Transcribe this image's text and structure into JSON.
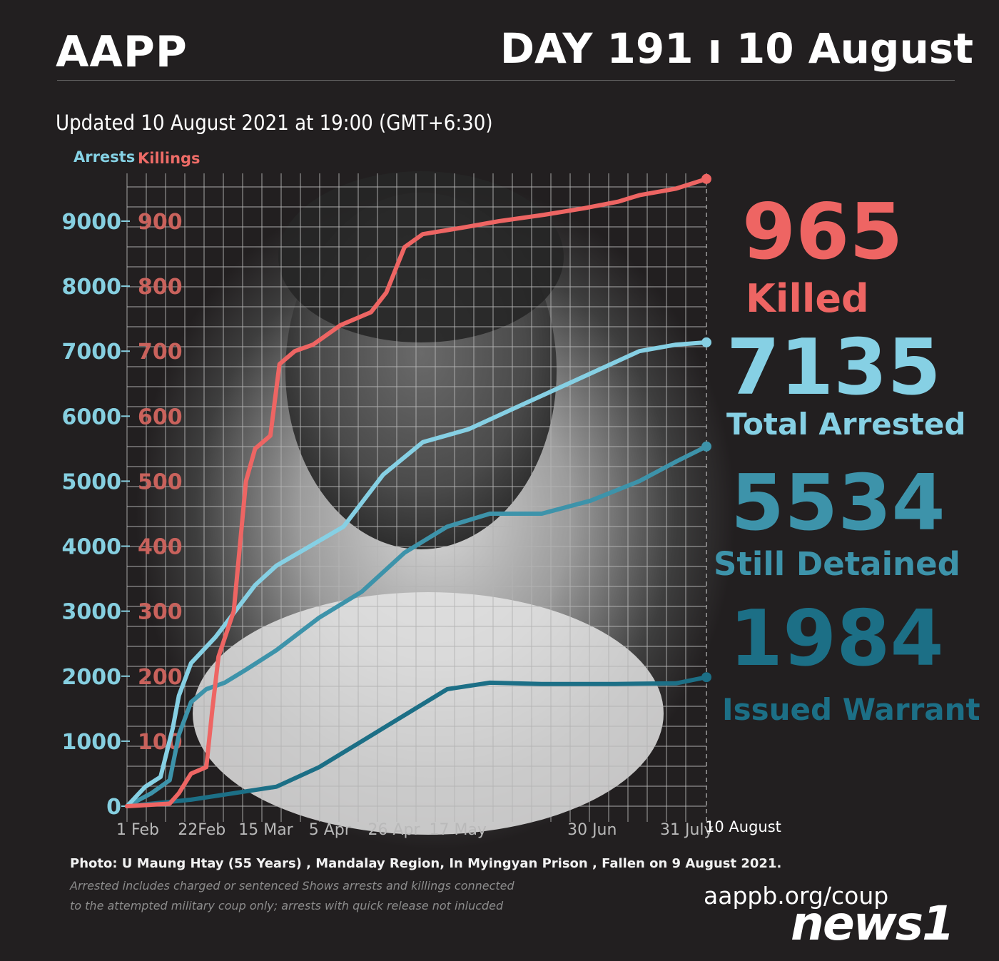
{
  "header": {
    "brand": "AAPP",
    "day": "DAY 191 ı 10 August",
    "updated": "Updated 10 August 2021 at 19:00 (GMT+6:30)"
  },
  "axes": {
    "left_label": "Arrests",
    "right_label": "Killings"
  },
  "colors": {
    "killings": "#ee6563",
    "arrested": "#86d0e4",
    "detained": "#3d93aa",
    "warrant": "#1c6f86",
    "background": "#221f20",
    "grid": "#b4b4b4"
  },
  "stats": {
    "killed_value": "965",
    "killed_label": "Killed",
    "arrested_value": "7135",
    "arrested_label": "Total Arrested",
    "detained_value": "5534",
    "detained_label": "Still Detained",
    "warrant_value": "1984",
    "warrant_label": "Issued Warrant"
  },
  "footer": {
    "photo_note": "Photo:  U Maung Htay (55 Years) , Mandalay Region, In Myingyan Prison , Fallen on 9 August 2021.",
    "note_line1": "Arrested includes charged or sentenced Shows arrests and killings connected",
    "note_line2": "to the attempted military coup only; arrests with quick release not inlucded",
    "site": "aappb.org/coup",
    "watermark": "news1"
  },
  "chart_data": {
    "type": "line",
    "x_tick_labels": [
      "1 Feb",
      "22Feb",
      "15 Mar",
      "5 Apr",
      "26 Apr",
      "17 May",
      "30 Jun",
      "31 July",
      "10 August"
    ],
    "x_tick_days": [
      0,
      21,
      42,
      63,
      84,
      105,
      149,
      180,
      190
    ],
    "x_range_days": [
      0,
      190
    ],
    "y_left": {
      "label": "Arrests",
      "range": [
        0,
        9000
      ],
      "ticks": [
        0,
        1000,
        2000,
        3000,
        4000,
        5000,
        6000,
        7000,
        8000,
        9000
      ]
    },
    "y_right": {
      "label": "Killings",
      "range": [
        0,
        900
      ],
      "ticks": [
        100,
        200,
        300,
        400,
        500,
        600,
        700,
        800,
        900
      ]
    },
    "grid": true,
    "series": [
      {
        "name": "Killings",
        "axis": "right",
        "points": [
          [
            0,
            0
          ],
          [
            7,
            2
          ],
          [
            14,
            4
          ],
          [
            17,
            20
          ],
          [
            21,
            50
          ],
          [
            26,
            60
          ],
          [
            28,
            150
          ],
          [
            30,
            230
          ],
          [
            35,
            300
          ],
          [
            39,
            500
          ],
          [
            42,
            550
          ],
          [
            47,
            570
          ],
          [
            50,
            680
          ],
          [
            55,
            700
          ],
          [
            61,
            710
          ],
          [
            70,
            740
          ],
          [
            80,
            760
          ],
          [
            85,
            790
          ],
          [
            91,
            860
          ],
          [
            97,
            880
          ],
          [
            110,
            890
          ],
          [
            122,
            900
          ],
          [
            137,
            910
          ],
          [
            150,
            920
          ],
          [
            161,
            930
          ],
          [
            168,
            940
          ],
          [
            180,
            950
          ],
          [
            190,
            965
          ]
        ]
      },
      {
        "name": "Total Arrested",
        "axis": "left",
        "points": [
          [
            0,
            0
          ],
          [
            6,
            300
          ],
          [
            11,
            450
          ],
          [
            15,
            1200
          ],
          [
            17,
            1700
          ],
          [
            21,
            2200
          ],
          [
            29,
            2600
          ],
          [
            42,
            3400
          ],
          [
            49,
            3700
          ],
          [
            60,
            4000
          ],
          [
            71,
            4300
          ],
          [
            84,
            5100
          ],
          [
            97,
            5600
          ],
          [
            112,
            5800
          ],
          [
            126,
            6100
          ],
          [
            140,
            6400
          ],
          [
            154,
            6700
          ],
          [
            168,
            7000
          ],
          [
            180,
            7100
          ],
          [
            190,
            7135
          ]
        ]
      },
      {
        "name": "Still Detained",
        "axis": "left",
        "points": [
          [
            0,
            0
          ],
          [
            8,
            200
          ],
          [
            14,
            400
          ],
          [
            17,
            1100
          ],
          [
            21,
            1600
          ],
          [
            26,
            1800
          ],
          [
            32,
            1900
          ],
          [
            39,
            2100
          ],
          [
            49,
            2400
          ],
          [
            63,
            2900
          ],
          [
            77,
            3300
          ],
          [
            91,
            3900
          ],
          [
            105,
            4300
          ],
          [
            119,
            4500
          ],
          [
            136,
            4500
          ],
          [
            152,
            4700
          ],
          [
            168,
            5000
          ],
          [
            180,
            5300
          ],
          [
            190,
            5534
          ]
        ]
      },
      {
        "name": "Issued Warrant",
        "axis": "left",
        "points": [
          [
            0,
            0
          ],
          [
            21,
            100
          ],
          [
            35,
            200
          ],
          [
            49,
            300
          ],
          [
            63,
            600
          ],
          [
            77,
            1000
          ],
          [
            91,
            1400
          ],
          [
            105,
            1800
          ],
          [
            119,
            1900
          ],
          [
            136,
            1880
          ],
          [
            160,
            1880
          ],
          [
            180,
            1890
          ],
          [
            190,
            1984
          ]
        ]
      }
    ]
  }
}
